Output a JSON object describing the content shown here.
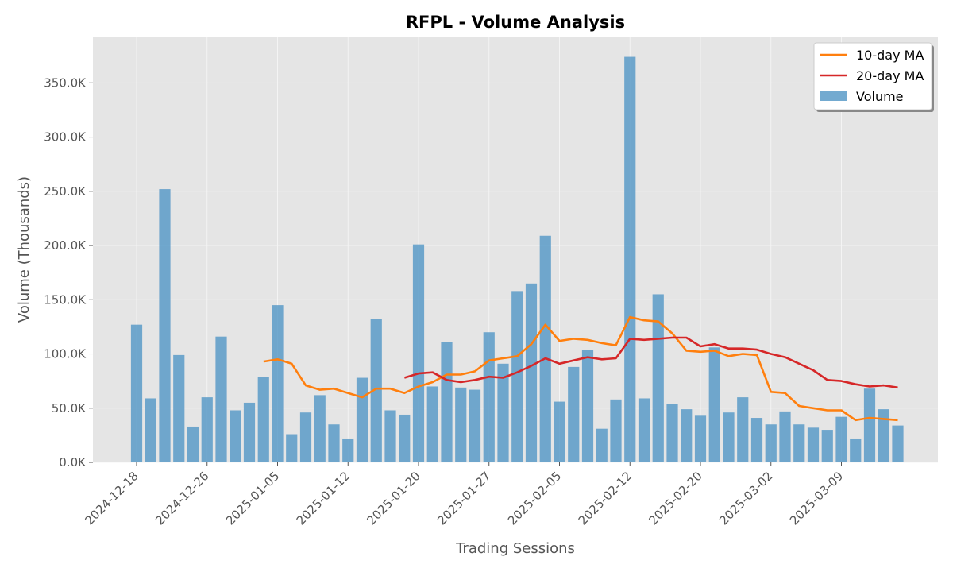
{
  "chart_data": {
    "type": "bar",
    "title": "RFPL - Volume Analysis",
    "xlabel": "Trading Sessions",
    "ylabel": "Volume (Thousands)",
    "ylim": [
      0,
      392000
    ],
    "y_ticks": [
      0,
      50000,
      100000,
      150000,
      200000,
      250000,
      300000,
      350000
    ],
    "y_tick_labels": [
      "0.0K",
      "50.0K",
      "100.0K",
      "150.0K",
      "200.0K",
      "250.0K",
      "300.0K",
      "350.0K"
    ],
    "x_tick_labels": [
      "2024-12-18",
      "2024-12-26",
      "2025-01-05",
      "2025-01-12",
      "2025-01-20",
      "2025-01-27",
      "2025-02-05",
      "2025-02-12",
      "2025-02-20",
      "2025-03-02",
      "2025-03-09"
    ],
    "x_tick_index": [
      0,
      5,
      10,
      15,
      20,
      25,
      30,
      35,
      40,
      45,
      50
    ],
    "grid": true,
    "legend_position": "top-right",
    "colors": {
      "volume": "#5b9bc8",
      "ma10": "#ff7f0e",
      "ma20": "#d62728",
      "plot_bg": "#e5e5e5",
      "grid": "#f4f4f4"
    },
    "series": [
      {
        "name": "Volume",
        "kind": "bar",
        "values": [
          127000,
          59000,
          252000,
          99000,
          33000,
          60000,
          116000,
          48000,
          55000,
          79000,
          145000,
          26000,
          46000,
          62000,
          35000,
          22000,
          78000,
          132000,
          48000,
          44000,
          201000,
          70000,
          111000,
          69000,
          67000,
          120000,
          91000,
          158000,
          165000,
          209000,
          56000,
          88000,
          104000,
          31000,
          58000,
          374000,
          59000,
          155000,
          54000,
          49000,
          43000,
          106000,
          46000,
          60000,
          41000,
          35000,
          47000,
          35000,
          32000,
          30000,
          42000,
          22000,
          68000,
          49000,
          34000
        ]
      },
      {
        "name": "10-day MA",
        "kind": "line",
        "values": [
          null,
          null,
          null,
          null,
          null,
          null,
          null,
          null,
          null,
          93000,
          95000,
          91000,
          71000,
          67000,
          68000,
          64000,
          60000,
          68000,
          68000,
          64000,
          70000,
          74000,
          81000,
          81000,
          84000,
          94000,
          96000,
          98000,
          109000,
          127000,
          112000,
          114000,
          113000,
          110000,
          108000,
          134000,
          131000,
          130000,
          119000,
          103000,
          102000,
          103000,
          98000,
          100000,
          99000,
          65000,
          64000,
          52000,
          50000,
          48000,
          48000,
          39000,
          41000,
          40000,
          39000
        ]
      },
      {
        "name": "20-day MA",
        "kind": "line",
        "values": [
          null,
          null,
          null,
          null,
          null,
          null,
          null,
          null,
          null,
          null,
          null,
          null,
          null,
          null,
          null,
          null,
          null,
          null,
          null,
          78000,
          82000,
          83000,
          76000,
          74000,
          76000,
          79000,
          78000,
          83000,
          89000,
          96000,
          91000,
          94000,
          97000,
          95000,
          96000,
          114000,
          113000,
          114000,
          115000,
          115000,
          107000,
          109000,
          105000,
          105000,
          104000,
          100000,
          97000,
          91000,
          85000,
          76000,
          75000,
          72000,
          70000,
          71000,
          69000
        ]
      }
    ]
  }
}
